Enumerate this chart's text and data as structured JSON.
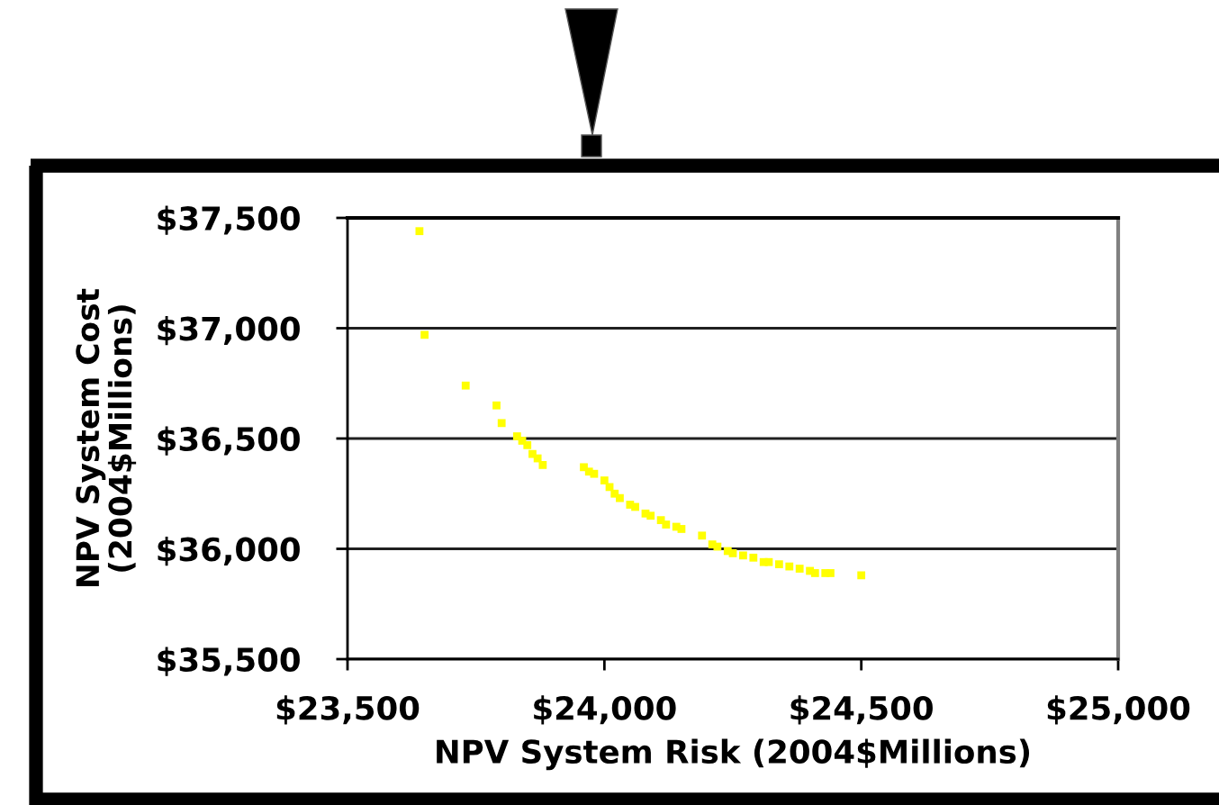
{
  "chart_data": {
    "type": "scatter",
    "xlabel": "NPV System Risk (2004$Millions)",
    "ylabel": "NPV System Cost\n(2004$Millions)",
    "x": [
      23640,
      23650,
      23730,
      23790,
      23800,
      23830,
      23840,
      23850,
      23860,
      23870,
      23880,
      23960,
      23970,
      23980,
      24000,
      24010,
      24020,
      24030,
      24050,
      24060,
      24080,
      24090,
      24110,
      24120,
      24140,
      24150,
      24190,
      24210,
      24220,
      24240,
      24250,
      24270,
      24290,
      24310,
      24320,
      24340,
      24360,
      24380,
      24400,
      24410,
      24430,
      24440,
      24500
    ],
    "values": [
      37440,
      36970,
      36740,
      36650,
      36570,
      36510,
      36490,
      36470,
      36430,
      36410,
      36380,
      36370,
      36350,
      36340,
      36310,
      36280,
      36250,
      36230,
      36200,
      36190,
      36160,
      36150,
      36130,
      36110,
      36100,
      36090,
      36060,
      36020,
      36010,
      35990,
      35980,
      35970,
      35960,
      35940,
      35940,
      35930,
      35920,
      35910,
      35900,
      35890,
      35890,
      35890,
      35880
    ],
    "color": "#ffff00",
    "marker": "square",
    "xlim": [
      23500,
      25000
    ],
    "ylim": [
      35500,
      37500
    ],
    "xticks": [
      {
        "value": 23500,
        "label": "$23,500"
      },
      {
        "value": 24000,
        "label": "$24,000"
      },
      {
        "value": 24500,
        "label": "$24,500"
      },
      {
        "value": 25000,
        "label": "$25,000"
      }
    ],
    "yticks": [
      {
        "value": 35500,
        "label": "$35,500"
      },
      {
        "value": 36000,
        "label": "$36,000"
      },
      {
        "value": 36500,
        "label": "$36,500"
      },
      {
        "value": 37000,
        "label": "$37,000"
      },
      {
        "value": 37500,
        "label": "$37,500"
      }
    ],
    "grid": "y"
  }
}
